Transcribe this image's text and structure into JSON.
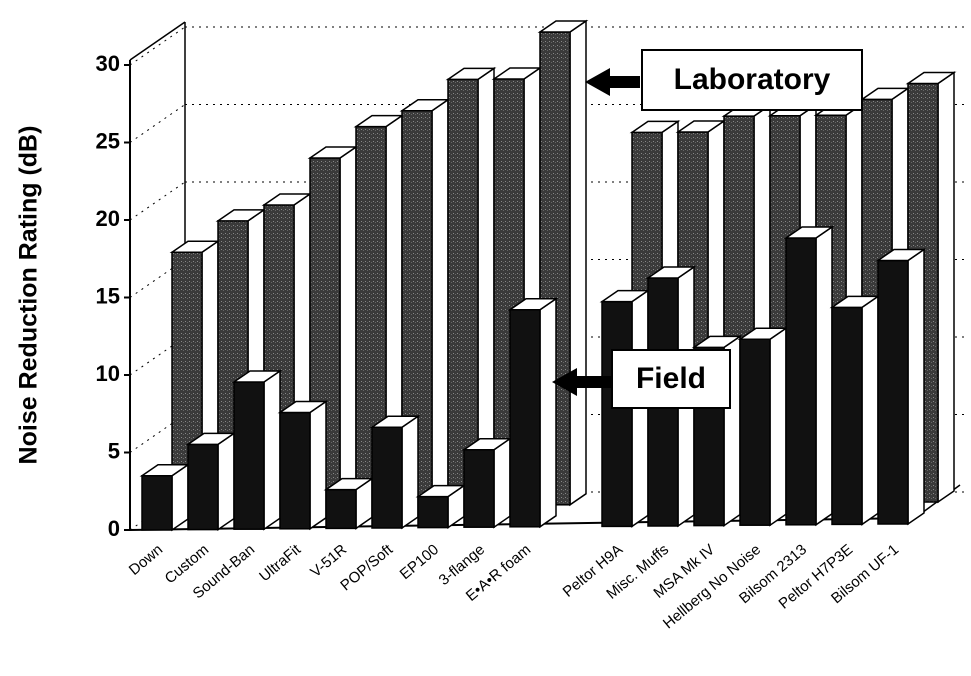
{
  "chart_data": {
    "type": "bar3d",
    "y_label": "Noise Reduction Rating (dB)",
    "categories": [
      "Down",
      "Custom",
      "Sound-Ban",
      "UltraFit",
      "V-51R",
      "POP/Soft",
      "EP100",
      "3-flange",
      "E•A•R foam",
      "Peltor H9A",
      "Misc. Muffs",
      "MSA Mk IV",
      "Hellberg No Noise",
      "Bilsom 2313",
      "Peltor H7P3E",
      "Bilsom UF-1"
    ],
    "series": [
      {
        "name": "Laboratory",
        "color": "#3a3a3a",
        "values": [
          16.5,
          18.5,
          19.5,
          22.5,
          24.5,
          25.5,
          27.5,
          27.5,
          30.5,
          24,
          24,
          25,
          25,
          25,
          26,
          27
        ]
      },
      {
        "name": "Field",
        "color": "#111111",
        "values": [
          3.5,
          5.5,
          9.5,
          7.5,
          2.5,
          6.5,
          2,
          5,
          14,
          14.5,
          16,
          11.5,
          12,
          18.5,
          14,
          17
        ]
      }
    ],
    "ylim": [
      0,
      30
    ],
    "yticks": [
      0,
      5,
      10,
      15,
      20,
      25,
      30
    ],
    "grid": true
  }
}
